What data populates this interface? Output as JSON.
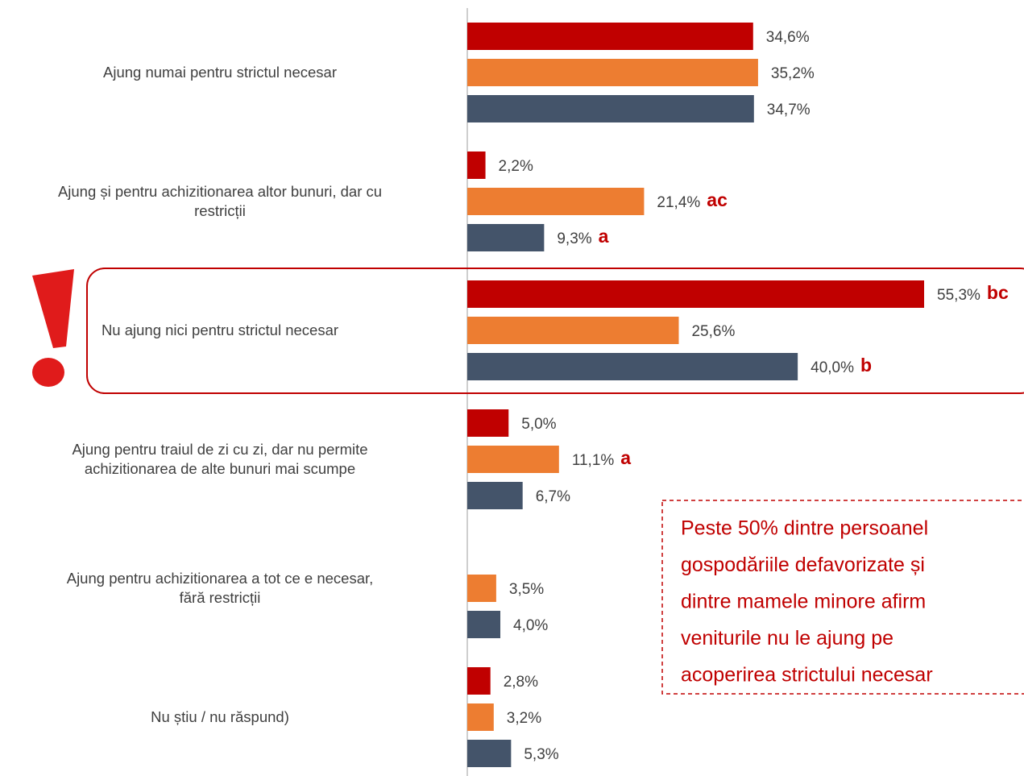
{
  "chart_data": {
    "type": "bar",
    "orientation": "horizontal",
    "categories": [
      "Ajung numai pentru strictul necesar",
      "Ajung și pentru achizitionarea altor bunuri, dar cu\nrestricții",
      "Nu ajung nici pentru strictul necesar",
      "Ajung pentru traiul de zi cu zi, dar nu permite\nachizitionarea de alte bunuri mai scumpe",
      "Ajung pentru achizitionarea a tot ce e necesar,\nfără restricții",
      "Nu știu / nu răspund)"
    ],
    "xlim": [
      0,
      67
    ],
    "series": [
      {
        "color": "#c00000",
        "values": [
          34.6,
          2.2,
          55.3,
          5.0,
          null,
          2.8
        ],
        "value_labels": [
          "34,6%",
          "2,2%",
          "55,3%",
          "5,0%",
          null,
          "2,8%"
        ],
        "notes": [
          null,
          null,
          "bc",
          null,
          null,
          null
        ]
      },
      {
        "color": "#ed7d31",
        "values": [
          35.2,
          21.4,
          25.6,
          11.1,
          3.5,
          3.2
        ],
        "value_labels": [
          "35,2%",
          "21,4%",
          "25,6%",
          "11,1%",
          "3,5%",
          "3,2%"
        ],
        "notes": [
          null,
          "ac",
          null,
          "a",
          null,
          null
        ]
      },
      {
        "color": "#44546a",
        "values": [
          34.7,
          9.3,
          40.0,
          6.7,
          4.0,
          5.3
        ],
        "value_labels": [
          "34,7%",
          "9,3%",
          "40,0%",
          "6,7%",
          "4,0%",
          "5,3%"
        ],
        "notes": [
          null,
          "a",
          "b",
          null,
          null,
          null
        ]
      }
    ],
    "highlight_category": 2,
    "callout": [
      "Peste 50% dintre persoanel",
      "gospodăriile defavorizate și",
      "dintre mamele minore afirm",
      "veniturile nu le ajung pe",
      "acoperirea strictului necesar"
    ]
  }
}
